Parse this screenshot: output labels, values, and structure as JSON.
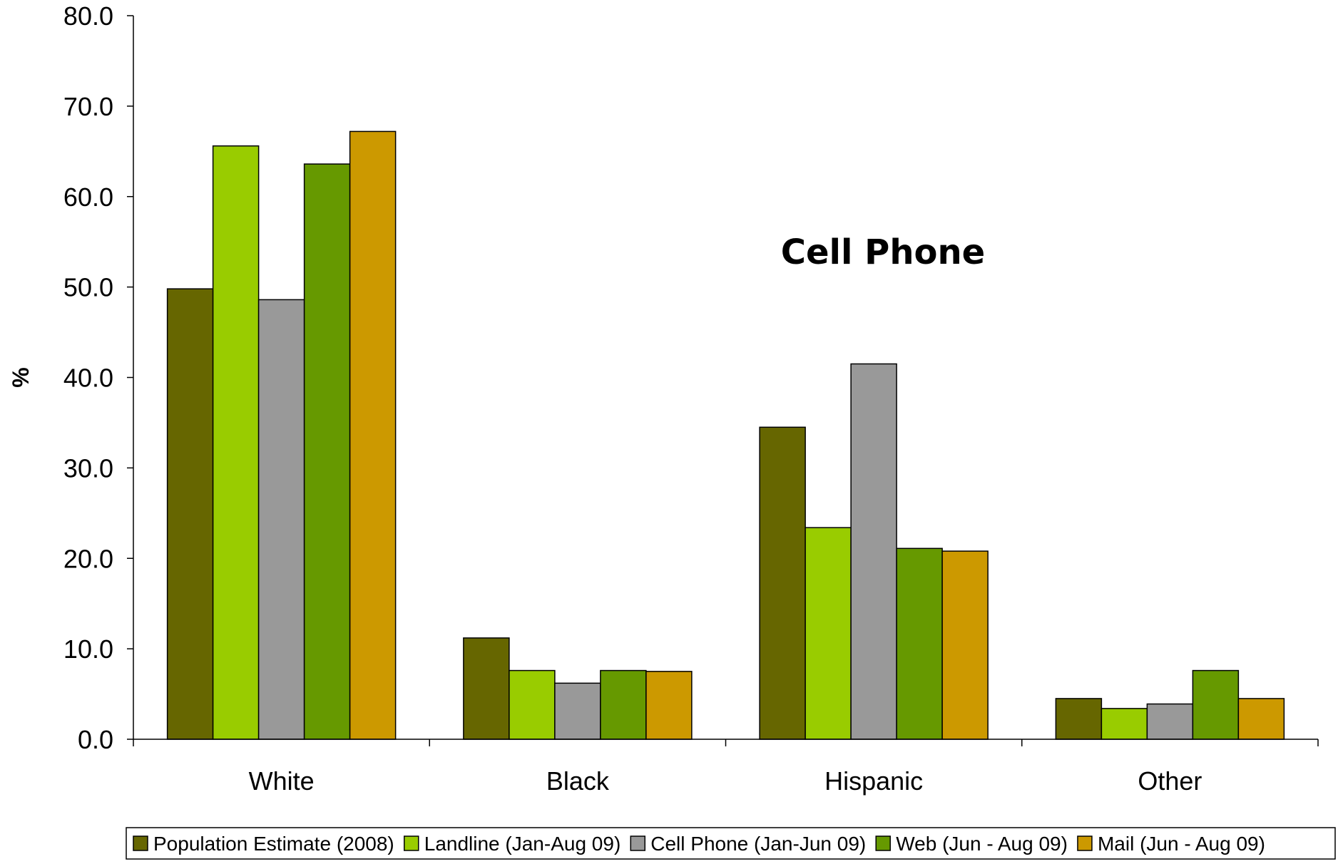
{
  "chart_data": {
    "type": "bar",
    "title": "",
    "annotation": "Cell Phone",
    "xlabel": "",
    "ylabel": "%",
    "ylim": [
      0,
      80
    ],
    "yticks": [
      "0.0",
      "10.0",
      "20.0",
      "30.0",
      "40.0",
      "50.0",
      "60.0",
      "70.0",
      "80.0"
    ],
    "categories": [
      "White",
      "Black",
      "Hispanic",
      "Other"
    ],
    "series": [
      {
        "name": "Population Estimate (2008)",
        "color": "#666600",
        "values": [
          49.8,
          11.2,
          34.5,
          4.5
        ]
      },
      {
        "name": "Landline (Jan-Aug 09)",
        "color": "#99cc00",
        "values": [
          65.6,
          7.6,
          23.4,
          3.4
        ]
      },
      {
        "name": "Cell Phone (Jan-Jun 09)",
        "color": "#999999",
        "values": [
          48.6,
          6.2,
          41.5,
          3.9
        ]
      },
      {
        "name": "Web (Jun - Aug 09)",
        "color": "#669900",
        "values": [
          63.6,
          7.6,
          21.1,
          7.6
        ]
      },
      {
        "name": "Mail (Jun - Aug 09)",
        "color": "#cc9900",
        "values": [
          67.2,
          7.5,
          20.8,
          4.5
        ]
      }
    ],
    "grid": false,
    "legend_position": "bottom"
  }
}
